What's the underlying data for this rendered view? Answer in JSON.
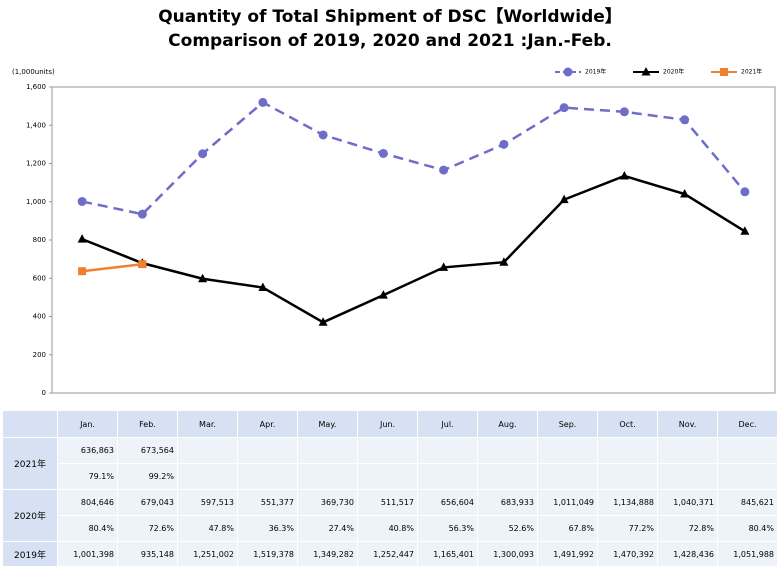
{
  "chart_data": {
    "type": "line",
    "title": "Quantity of Total Shipment of DSC【Worldwide】",
    "subtitle": "Comparison of 2019, 2020 and 2021 :Jan.-Feb.",
    "y_label": "(1,000units)",
    "categories": [
      "Jan.",
      "Feb.",
      "Mar.",
      "Apr.",
      "May.",
      "Jun.",
      "Jul.",
      "Aug.",
      "Sep.",
      "Oct.",
      "Nov.",
      "Dec."
    ],
    "series": [
      {
        "name": "2019年",
        "color": "#6e6ec8",
        "dashed": true,
        "marker": "circle",
        "values": [
          1001.398,
          935.148,
          1251.002,
          1519.378,
          1349.282,
          1252.447,
          1165.401,
          1300.093,
          1491.992,
          1470.392,
          1428.436,
          1051.988
        ]
      },
      {
        "name": "2020年",
        "color": "#000000",
        "dashed": false,
        "marker": "triangle",
        "values": [
          804.646,
          679.043,
          597.513,
          551.377,
          369.73,
          511.517,
          656.604,
          683.933,
          1011.049,
          1134.888,
          1040.371,
          845.621
        ]
      },
      {
        "name": "2021年",
        "color": "#f07f30",
        "dashed": false,
        "marker": "square",
        "values": [
          636.863,
          673.564,
          null,
          null,
          null,
          null,
          null,
          null,
          null,
          null,
          null,
          null
        ]
      }
    ],
    "ylim": [
      0,
      1600
    ],
    "yticks": [
      0,
      200,
      400,
      600,
      800,
      {
        "value": 1000,
        "label": "1,000"
      },
      {
        "value": 1200,
        "label": "1,200"
      },
      {
        "value": 1400,
        "label": "1,400"
      },
      {
        "value": 1600,
        "label": "1,600"
      }
    ],
    "legend": "top-right"
  },
  "table": {
    "y2021": {
      "units": [
        "636,863",
        "673,564"
      ],
      "ratio": [
        "79.1%",
        "99.2%"
      ]
    },
    "y2020": {
      "units": [
        "804,646",
        "679,043",
        "597,513",
        "551,377",
        "369,730",
        "511,517",
        "656,604",
        "683,933",
        "1,011,049",
        "1,134,888",
        "1,040,371",
        "845,621"
      ],
      "ratio": [
        "80.4%",
        "72.6%",
        "47.8%",
        "36.3%",
        "27.4%",
        "40.8%",
        "56.3%",
        "52.6%",
        "67.8%",
        "77.2%",
        "72.8%",
        "80.4%"
      ]
    },
    "y2019": {
      "units": [
        "1,001,398",
        "935,148",
        "1,251,002",
        "1,519,378",
        "1,349,282",
        "1,252,447",
        "1,165,401",
        "1,300,093",
        "1,491,992",
        "1,470,392",
        "1,428,436",
        "1,051,988"
      ]
    }
  }
}
